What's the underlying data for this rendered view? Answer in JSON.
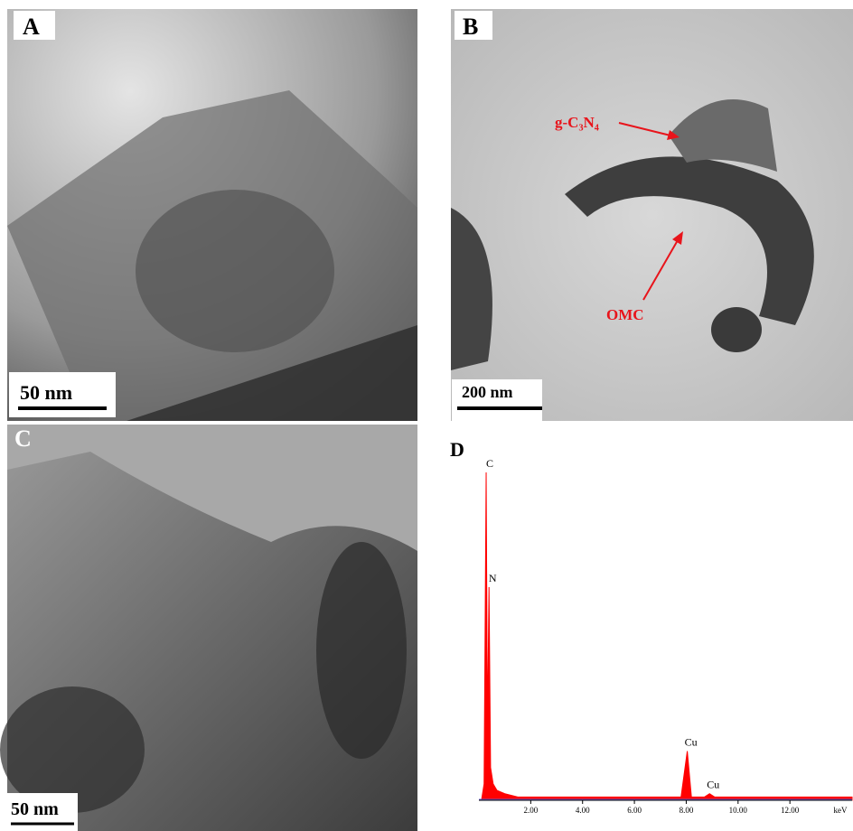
{
  "panels": [
    {
      "label": "A",
      "scale_bar": "50 nm"
    },
    {
      "label": "B",
      "scale_bar": "200 nm",
      "annotations": [
        "g-C₃N₄",
        "OMC"
      ]
    },
    {
      "label": "C",
      "scale_bar": "50 nm"
    }
  ],
  "chart_data": {
    "type": "spectrum",
    "label": "D",
    "xlabel": "keV",
    "xlim": [
      0,
      14.4
    ],
    "ylim": [
      0,
      100
    ],
    "xticks": [
      {
        "value": 2,
        "label": "2.00"
      },
      {
        "value": 4,
        "label": "4.00"
      },
      {
        "value": 6,
        "label": "6.00"
      },
      {
        "value": 8,
        "label": "8.00"
      },
      {
        "value": 10,
        "label": "10.00"
      },
      {
        "value": 12,
        "label": "12.00"
      }
    ],
    "color": "#ff0000",
    "baseline_color": "#6a5acd",
    "x": [
      0.1,
      0.2,
      0.28,
      0.33,
      0.39,
      0.45,
      0.55,
      0.7,
      1.0,
      1.5,
      2.0,
      7.8,
      8.04,
      8.2,
      8.7,
      8.9,
      9.1,
      14.4
    ],
    "values": [
      0,
      5,
      100,
      20,
      65,
      10,
      5,
      3,
      2,
      1,
      1,
      1,
      15,
      1,
      1,
      2,
      1,
      1
    ],
    "peaks": [
      {
        "label": "C",
        "x": 0.28,
        "y": 100
      },
      {
        "label": "N",
        "x": 0.39,
        "y": 65
      },
      {
        "label": "Cu",
        "x": 8.04,
        "y": 15
      },
      {
        "label": "Cu",
        "x": 8.9,
        "y": 2
      }
    ]
  }
}
